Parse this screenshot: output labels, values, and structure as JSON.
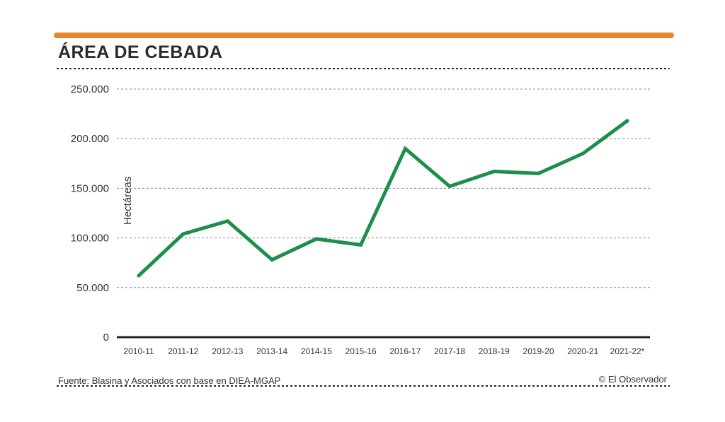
{
  "colors": {
    "accent_bar": "#e8872e",
    "line": "#1e8f4a",
    "grid": "#888888",
    "axis": "#222222"
  },
  "chart_data": {
    "type": "line",
    "title": "ÁREA DE CEBADA",
    "ylabel": "Hectáreas",
    "xlabel": "",
    "categories": [
      "2010-11",
      "2011-12",
      "2012-13",
      "2013-14",
      "2014-15",
      "2015-16",
      "2016-17",
      "2017-18",
      "2018-19",
      "2019-20",
      "2020-21",
      "2021-22*"
    ],
    "series": [
      {
        "values": [
          62000,
          104000,
          117000,
          78000,
          99000,
          93000,
          190000,
          152000,
          167000,
          165000,
          185000,
          218000
        ]
      }
    ],
    "ylim": [
      0,
      250000
    ],
    "yticks": [
      0,
      50000,
      100000,
      150000,
      200000,
      250000
    ],
    "ytick_labels": [
      "0",
      "50.000",
      "100.000",
      "150.000",
      "200.000",
      "250.000"
    ],
    "grid": true,
    "legend": "none"
  },
  "footer": {
    "source": "Fuente: Blasina y Asociados con base en DIEA-MGAP",
    "credit": "© El Observador"
  }
}
